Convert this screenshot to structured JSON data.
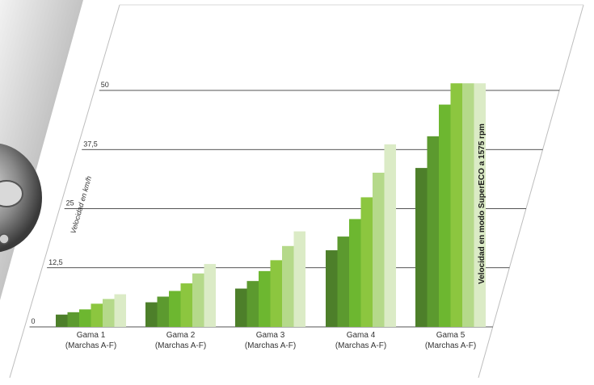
{
  "chart_data": {
    "type": "bar",
    "title": "",
    "ylabel": "Velocidad en km/h",
    "xlabel": "",
    "ylim": [
      0,
      50
    ],
    "yticks": [
      "0",
      "12,5",
      "25",
      "37,5",
      "50"
    ],
    "ytick_values": [
      0,
      12.5,
      25,
      37.5,
      50
    ],
    "categories": [
      [
        "Gama 1",
        "(Marchas A-F)"
      ],
      [
        "Gama 2",
        "(Marchas A-F)"
      ],
      [
        "Gama 3",
        "(Marchas A-F)"
      ],
      [
        "Gama 4",
        "(Marchas A-F)"
      ],
      [
        "Gama 5",
        "(Marchas A-F)"
      ]
    ],
    "series": [
      {
        "values": [
          2.6,
          5.2,
          8.1,
          16.2,
          33.6
        ]
      },
      {
        "values": [
          3.1,
          6.4,
          9.7,
          19.1,
          40.3
        ]
      },
      {
        "values": [
          3.7,
          7.6,
          11.8,
          22.8,
          47.0
        ]
      },
      {
        "values": [
          4.9,
          9.2,
          14.1,
          27.4,
          51.5
        ]
      },
      {
        "values": [
          5.9,
          11.3,
          17.1,
          32.6,
          51.5
        ]
      },
      {
        "values": [
          6.9,
          13.3,
          20.2,
          38.6,
          51.5
        ]
      }
    ],
    "annotation": "Velocidad en modo SuperECO a 1575 rpm",
    "grid": true,
    "colors": [
      "#4d7f2a",
      "#5c9a2f",
      "#6db730",
      "#8cc63f",
      "#b5d98a",
      "#dbebc6"
    ]
  },
  "decor": {
    "icon": "tractor-wheel-hub-photo"
  }
}
